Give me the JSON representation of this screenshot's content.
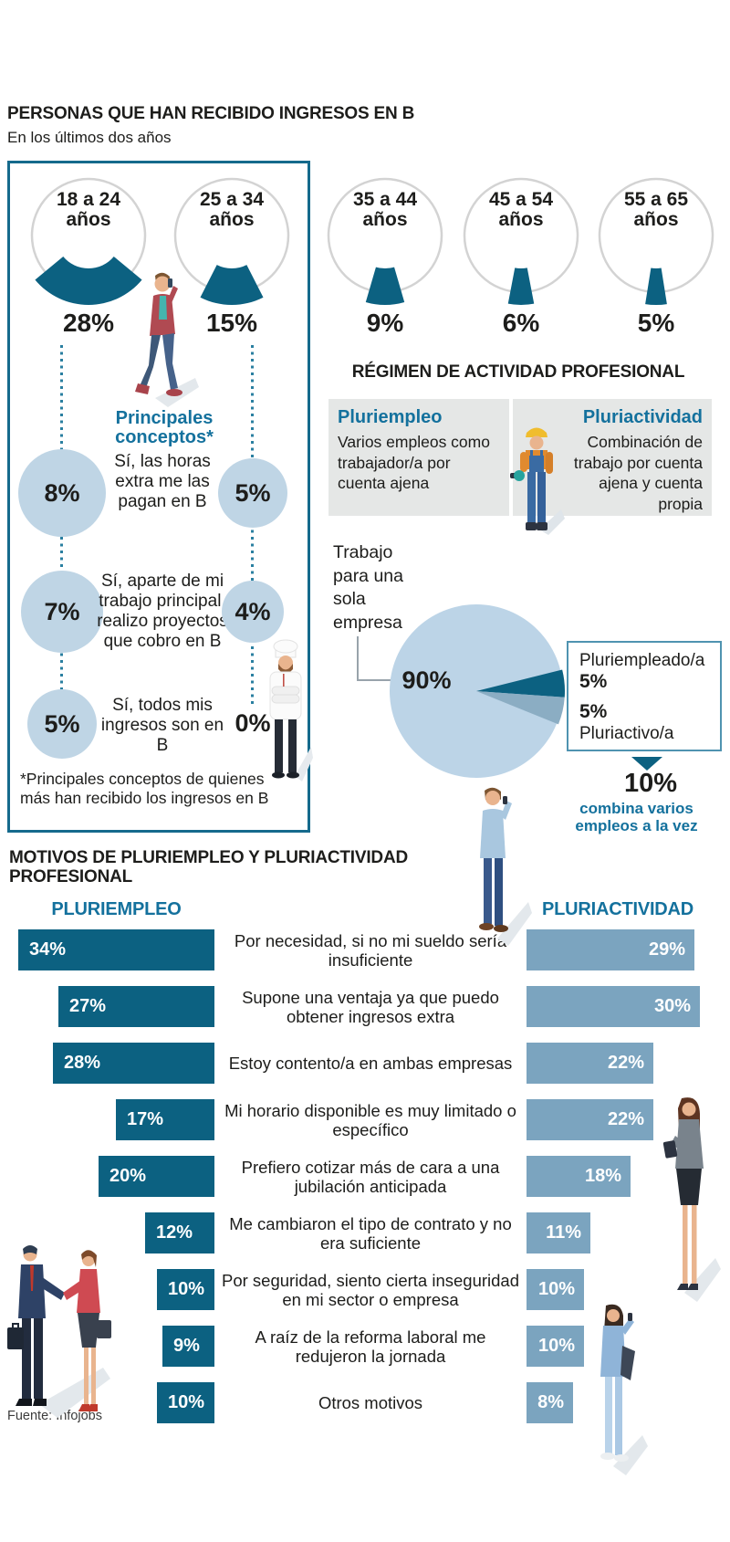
{
  "colors": {
    "accent_dark_teal": "#0c6181",
    "accent_text_teal": "#14719d",
    "light_blue": "#bfd5e5",
    "mid_blue": "#7ba4bf",
    "pie_light": "#bcd4e7",
    "pie_mid_slice": "#8badc3",
    "panel_gray": "#e5e7e6",
    "gauge_ring_gray": "#d3d3d3",
    "box_border_teal": "#156a8c",
    "text_black": "#1d1d1b"
  },
  "header": {
    "title": "PERSONAS QUE HAN RECIBIDO INGRESOS EN B",
    "subtitle": "En los últimos dos años"
  },
  "concepts": {
    "heading": "Principales conceptos*",
    "footnote": "*Principales conceptos de quienes más han recibido los ingresos en B"
  },
  "regimen": {
    "heading": "RÉGIMEN DE ACTIVIDAD PROFESIONAL",
    "pluriempleo": {
      "title": "Pluriempleo",
      "desc": "Varios empleos como trabajador/a por cuenta ajena"
    },
    "pluriactividad": {
      "title": "Pluriactividad",
      "desc": "Combinación de trabajo por cuenta ajena y cuenta propia"
    }
  },
  "pie_labels": {
    "main": "Trabajo para una sola empresa",
    "main_pct": "90%",
    "slice1_label": "Pluriempleado/a",
    "slice1_pct": "5%",
    "slice2_pct": "5%",
    "slice2_label": "Pluriactivo/a",
    "total_pct": "10%",
    "total_caption": "combina varios empleos a la vez"
  },
  "motives": {
    "heading_line1": "MOTIVOS DE PLURIEMPLEO Y PLURIACTIVIDAD",
    "heading_line2": "PROFESIONAL",
    "left_header": "PLURIEMPLEO",
    "right_header": "PLURIACTIVIDAD"
  },
  "source": "Fuente: Infojobs",
  "chart_data": [
    {
      "type": "bar",
      "subtype": "gauge-arcs",
      "title": "PERSONAS QUE HAN RECIBIDO INGRESOS EN B",
      "subtitle": "En los últimos dos años",
      "categories": [
        "18 a 24 años",
        "25 a 34 años",
        "35 a 44 años",
        "45 a 54 años",
        "55 a 65 años"
      ],
      "values": [
        28,
        15,
        9,
        6,
        5
      ],
      "unit": "%"
    },
    {
      "type": "scatter",
      "subtype": "bubble-pairs",
      "title": "Principales conceptos*",
      "categories": [
        "Sí, las horas extra me las pagan en B",
        "Sí, aparte de mi trabajo principal, realizo proyectos que cobro en B",
        "Sí, todos mis ingresos son en B"
      ],
      "series": [
        {
          "name": "18 a 24 años",
          "values": [
            8,
            7,
            5
          ]
        },
        {
          "name": "25 a 34 años",
          "values": [
            5,
            4,
            0
          ]
        }
      ],
      "unit": "%"
    },
    {
      "type": "pie",
      "title": "RÉGIMEN DE ACTIVIDAD PROFESIONAL",
      "labels": [
        "Trabajo para una sola empresa",
        "Pluriempleado/a",
        "Pluriactivo/a"
      ],
      "values": [
        90,
        5,
        5
      ],
      "annotation": "10% combina varios empleos a la vez",
      "legend_position": "right"
    },
    {
      "type": "bar",
      "subtype": "diverging-horizontal",
      "title": "MOTIVOS DE PLURIEMPLEO Y PLURIACTIVIDAD PROFESIONAL",
      "categories": [
        "Por necesidad, si no mi sueldo sería insuficiente",
        "Supone una ventaja ya que puedo obtener ingresos extra",
        "Estoy contento/a en ambas empresas",
        "Mi horario disponible es muy limitado o específico",
        "Prefiero cotizar más de cara a una jubilación anticipada",
        "Me cambiaron el tipo de contrato y no era suficiente",
        "Por seguridad, siento cierta inseguridad en mi sector o empresa",
        "A raíz de la reforma laboral me redujeron la jornada",
        "Otros motivos"
      ],
      "series": [
        {
          "name": "PLURIEMPLEO",
          "values": [
            34,
            27,
            28,
            17,
            20,
            12,
            10,
            9,
            10
          ]
        },
        {
          "name": "PLURIACTIVIDAD",
          "values": [
            29,
            30,
            22,
            22,
            18,
            11,
            10,
            10,
            8
          ]
        }
      ],
      "unit": "%"
    }
  ]
}
